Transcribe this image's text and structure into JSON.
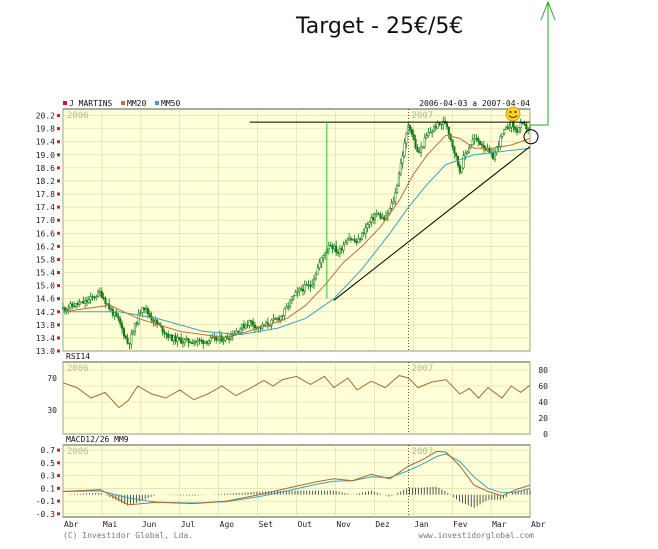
{
  "annotation": {
    "title": "Target - 25€/5€"
  },
  "header": {
    "legend": [
      {
        "label": "J MARTINS",
        "color": "#d01818"
      },
      {
        "label": "MM20",
        "color": "#c07040"
      },
      {
        "label": "MM50",
        "color": "#40a0c0"
      }
    ],
    "date_range": "2006-04-03 a 2007-04-04"
  },
  "footer": {
    "left": "(C) Investidor Global, Lda.",
    "right": "www.investidorglobal.com"
  },
  "colors": {
    "panel_bg": "#ffffd8",
    "grid": "#d8d8a8",
    "price": "#117711",
    "mm20": "#c07040",
    "mm50": "#40a0c0",
    "rsi": "#a86a30",
    "macd": "#a86a30",
    "signal": "#40a0c0",
    "target_arrow": "#22aa22"
  },
  "chart_data": [
    {
      "type": "candlestick",
      "name": "price",
      "x_labels": [
        "Abr",
        "Mai",
        "Jun",
        "Jul",
        "Ago",
        "Set",
        "Out",
        "Nov",
        "Dez",
        "Jan",
        "Fev",
        "Mar",
        "Abr"
      ],
      "year_marks": [
        "2006",
        "2007"
      ],
      "y_ticks": [
        13.0,
        13.4,
        13.8,
        14.2,
        14.6,
        15.0,
        15.4,
        15.8,
        16.2,
        16.6,
        17.0,
        17.4,
        17.8,
        18.2,
        18.6,
        19.0,
        19.4,
        19.8,
        20.2
      ],
      "y_tick_labels": [
        "13.0",
        "13.4",
        "13.8",
        "14.2",
        "14.6",
        "15.0",
        "15.4",
        "15.8",
        "16.2",
        "16.6",
        "17.0",
        "17.4",
        "17.8",
        "18.2",
        "18.6",
        "19.0",
        "19.4",
        "19.8",
        "20.2"
      ],
      "ylim": [
        13.0,
        20.4
      ],
      "close_path": [
        [
          0,
          14.3
        ],
        [
          5,
          14.5
        ],
        [
          8,
          14.8
        ],
        [
          10,
          14.3
        ],
        [
          12,
          13.9
        ],
        [
          14,
          13.2
        ],
        [
          15,
          13.6
        ],
        [
          17,
          14.4
        ],
        [
          19,
          14.0
        ],
        [
          21,
          13.7
        ],
        [
          23,
          13.4
        ],
        [
          26,
          13.3
        ],
        [
          30,
          13.3
        ],
        [
          35,
          13.4
        ],
        [
          38,
          13.7
        ],
        [
          40,
          13.9
        ],
        [
          42,
          13.7
        ],
        [
          45,
          13.9
        ],
        [
          47,
          14.1
        ],
        [
          49,
          14.6
        ],
        [
          51,
          14.9
        ],
        [
          53,
          15.0
        ],
        [
          55,
          15.7
        ],
        [
          57,
          16.3
        ],
        [
          59,
          16.0
        ],
        [
          61,
          16.5
        ],
        [
          63,
          16.3
        ],
        [
          65,
          16.8
        ],
        [
          67,
          17.2
        ],
        [
          69,
          17.0
        ],
        [
          71,
          17.7
        ],
        [
          72,
          18.5
        ],
        [
          73,
          19.2
        ],
        [
          74,
          20.0
        ],
        [
          76,
          19.0
        ],
        [
          78,
          19.6
        ],
        [
          80,
          19.9
        ],
        [
          82,
          20.0
        ],
        [
          83,
          19.5
        ],
        [
          85,
          18.5
        ],
        [
          86,
          19.0
        ],
        [
          88,
          19.5
        ],
        [
          90,
          19.3
        ],
        [
          92,
          18.9
        ],
        [
          94,
          19.6
        ],
        [
          96,
          20.0
        ],
        [
          97,
          19.7
        ],
        [
          98,
          19.9
        ],
        [
          100,
          19.8
        ]
      ],
      "mm20_path": [
        [
          0,
          14.2
        ],
        [
          10,
          14.4
        ],
        [
          16,
          14.0
        ],
        [
          25,
          13.6
        ],
        [
          35,
          13.4
        ],
        [
          42,
          13.7
        ],
        [
          48,
          14.0
        ],
        [
          52,
          14.4
        ],
        [
          56,
          15.0
        ],
        [
          60,
          15.7
        ],
        [
          64,
          16.2
        ],
        [
          68,
          16.8
        ],
        [
          72,
          17.6
        ],
        [
          75,
          18.4
        ],
        [
          78,
          19.0
        ],
        [
          82,
          19.6
        ],
        [
          85,
          19.5
        ],
        [
          88,
          19.2
        ],
        [
          92,
          19.2
        ],
        [
          96,
          19.3
        ],
        [
          100,
          19.5
        ]
      ],
      "mm50_path": [
        [
          0,
          14.2
        ],
        [
          12,
          14.2
        ],
        [
          20,
          14.0
        ],
        [
          30,
          13.6
        ],
        [
          38,
          13.5
        ],
        [
          46,
          13.7
        ],
        [
          52,
          14.0
        ],
        [
          58,
          14.6
        ],
        [
          64,
          15.5
        ],
        [
          70,
          16.6
        ],
        [
          74,
          17.4
        ],
        [
          78,
          18.1
        ],
        [
          82,
          18.7
        ],
        [
          88,
          19.0
        ],
        [
          94,
          19.1
        ],
        [
          100,
          19.2
        ]
      ],
      "trend_line": [
        [
          58,
          14.55
        ],
        [
          100,
          19.25
        ]
      ],
      "resistance_line": [
        [
          40,
          20.0
        ],
        [
          100,
          20.0
        ]
      ],
      "vertical_marker": {
        "x": 56.5,
        "from": 14.6,
        "to": 20.0
      },
      "circle_at": {
        "x": 100,
        "y": 19.55
      },
      "date_divider": 74,
      "n_candles": 254
    },
    {
      "type": "line",
      "name": "RSI14",
      "y_ticks": [
        0,
        20,
        40,
        60,
        80
      ],
      "y_tick_labels": [
        "0",
        "20",
        "40",
        "60",
        "80"
      ],
      "left_ticks": [
        30,
        70
      ],
      "left_tick_labels": [
        "30",
        "70"
      ],
      "ylim": [
        0,
        90
      ],
      "path": [
        [
          0,
          64
        ],
        [
          3,
          58
        ],
        [
          6,
          45
        ],
        [
          9,
          52
        ],
        [
          12,
          33
        ],
        [
          14,
          42
        ],
        [
          16,
          60
        ],
        [
          19,
          50
        ],
        [
          22,
          45
        ],
        [
          25,
          55
        ],
        [
          28,
          43
        ],
        [
          31,
          50
        ],
        [
          34,
          60
        ],
        [
          37,
          48
        ],
        [
          40,
          57
        ],
        [
          43,
          67
        ],
        [
          45,
          60
        ],
        [
          47,
          68
        ],
        [
          50,
          72
        ],
        [
          53,
          62
        ],
        [
          56,
          72
        ],
        [
          58,
          58
        ],
        [
          61,
          70
        ],
        [
          63,
          55
        ],
        [
          66,
          66
        ],
        [
          69,
          58
        ],
        [
          72,
          73
        ],
        [
          74,
          70
        ],
        [
          76,
          58
        ],
        [
          79,
          65
        ],
        [
          82,
          68
        ],
        [
          85,
          50
        ],
        [
          87,
          57
        ],
        [
          89,
          45
        ],
        [
          91,
          58
        ],
        [
          94,
          45
        ],
        [
          96,
          60
        ],
        [
          98,
          52
        ],
        [
          100,
          61
        ]
      ]
    },
    {
      "type": "line",
      "name": "MACD12/26 MM9",
      "y_ticks": [
        -0.3,
        -0.1,
        0.1,
        0.3,
        0.5,
        0.7
      ],
      "y_tick_labels": [
        "-0.3",
        "-0.1",
        "0.1",
        "0.3",
        "0.5",
        "0.7"
      ],
      "ylim": [
        -0.35,
        0.78
      ],
      "macd_path": [
        [
          0,
          0.05
        ],
        [
          8,
          0.08
        ],
        [
          14,
          -0.16
        ],
        [
          20,
          -0.12
        ],
        [
          28,
          -0.14
        ],
        [
          35,
          -0.1
        ],
        [
          42,
          0.0
        ],
        [
          48,
          0.1
        ],
        [
          54,
          0.2
        ],
        [
          58,
          0.25
        ],
        [
          62,
          0.22
        ],
        [
          66,
          0.32
        ],
        [
          70,
          0.25
        ],
        [
          74,
          0.45
        ],
        [
          77,
          0.55
        ],
        [
          80,
          0.68
        ],
        [
          82,
          0.67
        ],
        [
          85,
          0.45
        ],
        [
          88,
          0.15
        ],
        [
          91,
          0.05
        ],
        [
          94,
          -0.02
        ],
        [
          97,
          0.08
        ],
        [
          100,
          0.15
        ]
      ],
      "signal_path": [
        [
          0,
          0.05
        ],
        [
          8,
          0.06
        ],
        [
          14,
          -0.05
        ],
        [
          20,
          -0.12
        ],
        [
          28,
          -0.13
        ],
        [
          35,
          -0.11
        ],
        [
          42,
          -0.03
        ],
        [
          48,
          0.06
        ],
        [
          54,
          0.16
        ],
        [
          58,
          0.21
        ],
        [
          62,
          0.22
        ],
        [
          66,
          0.28
        ],
        [
          70,
          0.27
        ],
        [
          74,
          0.38
        ],
        [
          77,
          0.48
        ],
        [
          80,
          0.6
        ],
        [
          82,
          0.64
        ],
        [
          85,
          0.52
        ],
        [
          88,
          0.28
        ],
        [
          91,
          0.1
        ],
        [
          94,
          0.03
        ],
        [
          97,
          0.04
        ],
        [
          100,
          0.1
        ]
      ]
    }
  ]
}
